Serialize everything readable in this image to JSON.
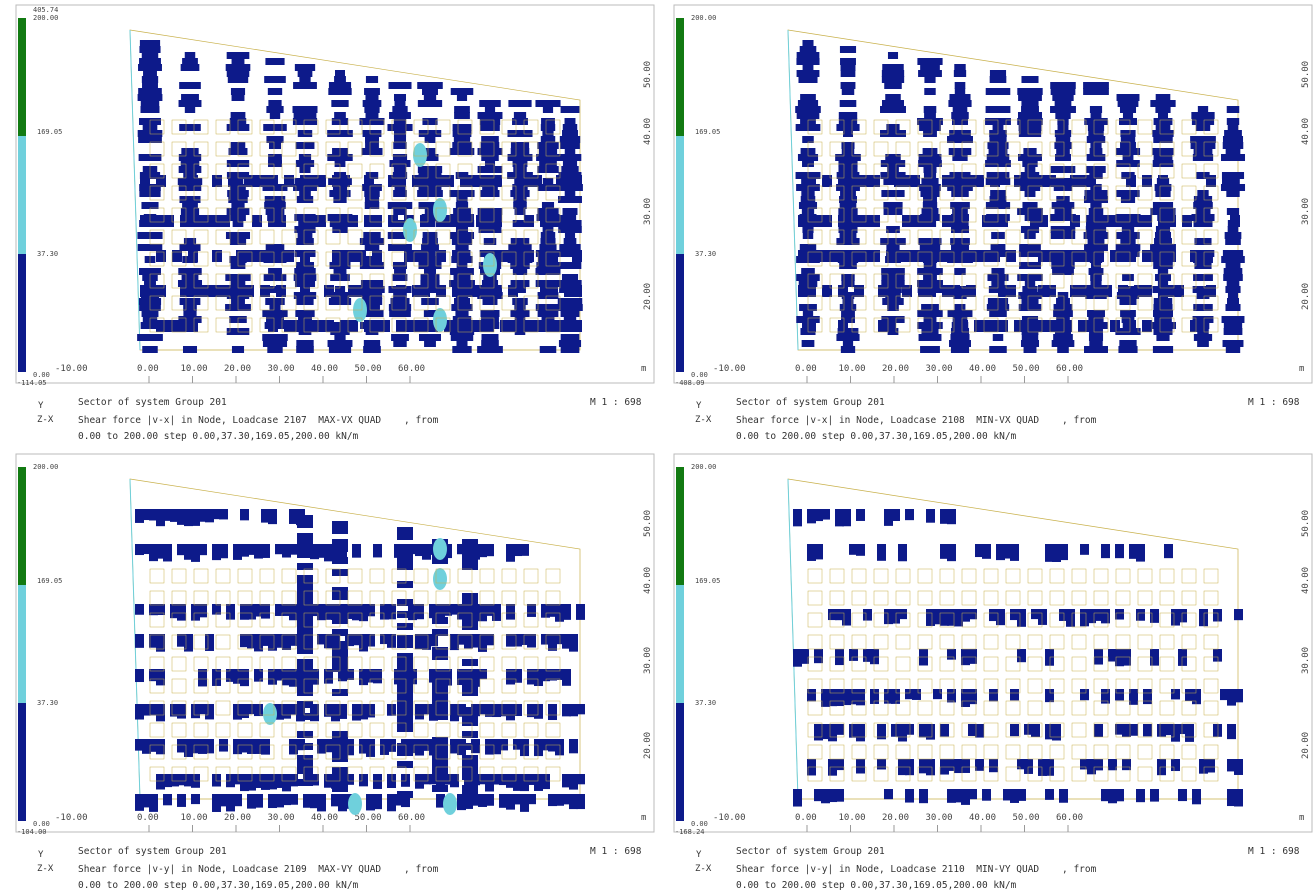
{
  "panels": [
    {
      "legend_top": "405.74",
      "legend_top2": "200.00",
      "legend_mid1": "169.05",
      "legend_mid2": "37.30",
      "legend_low": "-10.00",
      "legend_zero": "0.00",
      "legend_bottom": "-114.05",
      "title": "Sector of system Group 201",
      "line2": "Shear force |v-x| in Node, Loadcase 2107  MAX-VX QUAD    , from",
      "line3": "0.00 to 200.00 step 0.00,37.30,169.05,200.00 kN/m",
      "scale": "M 1 : 698"
    },
    {
      "legend_top": "",
      "legend_top2": "200.00",
      "legend_mid1": "169.05",
      "legend_mid2": "37.30",
      "legend_low": "-10.00",
      "legend_zero": "0.00",
      "legend_bottom": "-408.09",
      "title": "Sector of system Group 201",
      "line2": "Shear force |v-x| in Node, Loadcase 2108  MIN-VX QUAD    , from",
      "line3": "0.00 to 200.00 step 0.00,37.30,169.05,200.00 kN/m",
      "scale": "M 1 : 698"
    },
    {
      "legend_top": "",
      "legend_top2": "200.00",
      "legend_mid1": "169.05",
      "legend_mid2": "37.30",
      "legend_low": "-10.00",
      "legend_zero": "0.00",
      "legend_bottom": "-104.00",
      "title": "Sector of system Group 201",
      "line2": "Shear force |v-y| in Node, Loadcase 2109  MAX-VY QUAD    , from",
      "line3": "0.00 to 200.00 step 0.00,37.30,169.05,200.00 kN/m",
      "scale": "M 1 : 698"
    },
    {
      "legend_top": "",
      "legend_top2": "200.00",
      "legend_mid1": "169.05",
      "legend_mid2": "37.30",
      "legend_low": "-10.00",
      "legend_zero": "0.00",
      "legend_bottom": "-168.24",
      "title": "Sector of system Group 201",
      "line2": "Shear force |v-y| in Node, Loadcase 2110  MIN-VY QUAD    , from",
      "line3": "0.00 to 200.00 step 0.00,37.30,169.05,200.00 kN/m",
      "scale": "M 1 : 698"
    }
  ],
  "x_ticks": [
    "0.00",
    "10.00",
    "20.00",
    "30.00",
    "40.00",
    "50.00",
    "60.00"
  ],
  "y_ticks": [
    "20.00",
    "30.00",
    "40.00",
    "50.00"
  ],
  "unit": "m",
  "axis_y": "Y",
  "axis_zx": "Z-X",
  "colors": {
    "contour": "#0d1a8a",
    "light": "#6fd0dc",
    "legend_green": "#127a12",
    "legend_cyan": "#6fd0dc",
    "legend_navy": "#0d1a8a",
    "outline": "#c8b04a"
  }
}
